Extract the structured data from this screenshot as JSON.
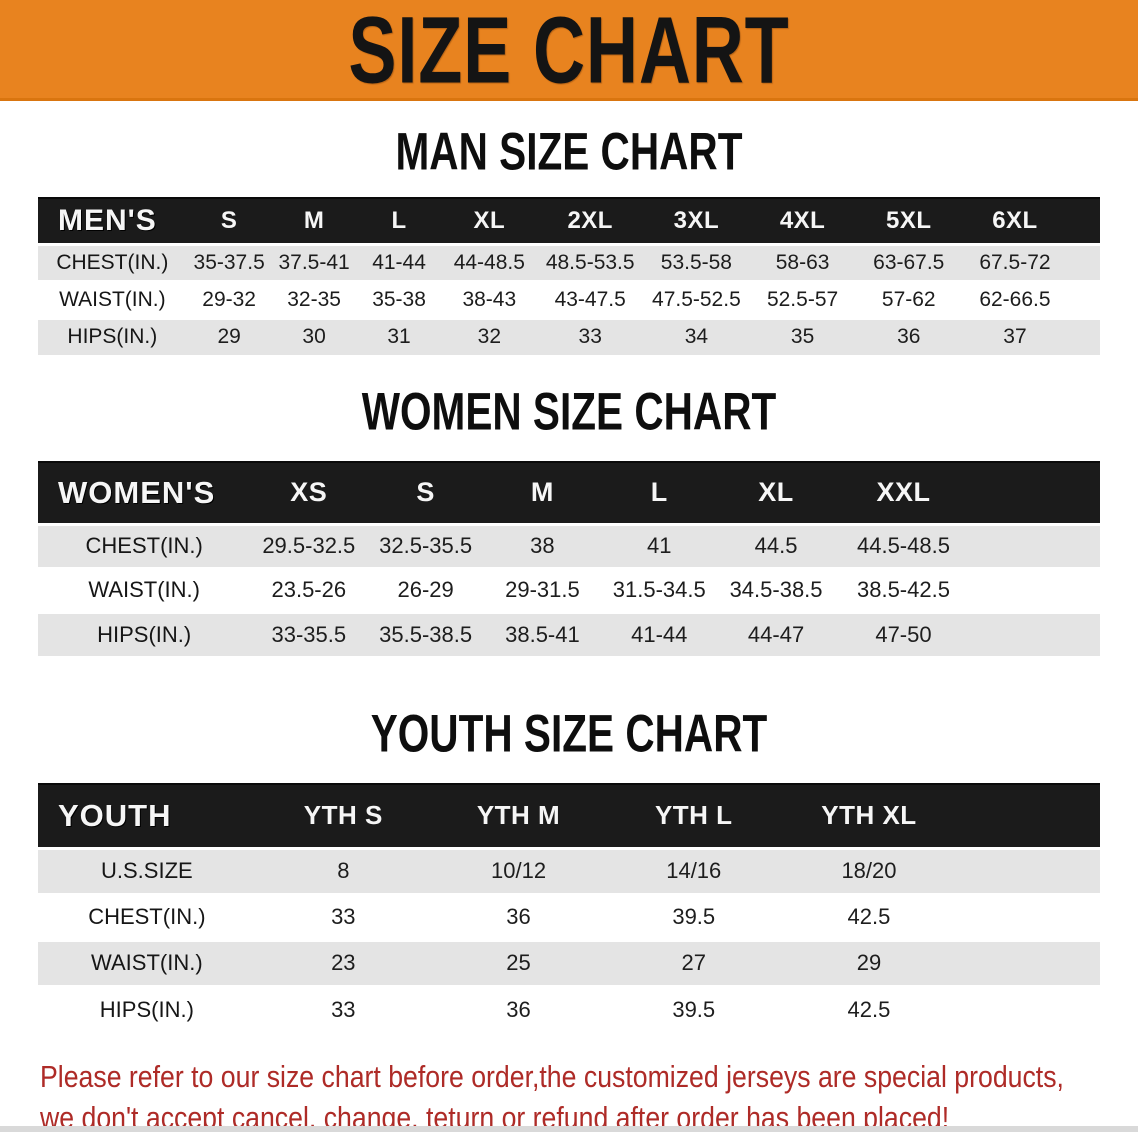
{
  "banner": {
    "title": "SIZE CHART",
    "bg_color": "#E8831F",
    "text_color": "#141414"
  },
  "sections": [
    {
      "id": "men",
      "heading": "MAN SIZE CHART",
      "corner_label": "MEN'S",
      "columns": [
        "S",
        "M",
        "L",
        "XL",
        "2XL",
        "3XL",
        "4XL",
        "5XL",
        "6XL"
      ],
      "rows": [
        {
          "label": "CHEST(IN.)",
          "values": [
            "35-37.5",
            "37.5-41",
            "41-44",
            "44-48.5",
            "48.5-53.5",
            "53.5-58",
            "58-63",
            "63-67.5",
            "67.5-72"
          ]
        },
        {
          "label": "WAIST(IN.)",
          "values": [
            "29-32",
            "32-35",
            "35-38",
            "38-43",
            "43-47.5",
            "47.5-52.5",
            "52.5-57",
            "57-62",
            "62-66.5"
          ]
        },
        {
          "label": "HIPS(IN.)",
          "values": [
            "29",
            "30",
            "31",
            "32",
            "33",
            "34",
            "35",
            "36",
            "37"
          ]
        }
      ]
    },
    {
      "id": "women",
      "heading": "WOMEN SIZE CHART",
      "corner_label": "WOMEN'S",
      "columns": [
        "XS",
        "S",
        "M",
        "L",
        "XL",
        "XXL"
      ],
      "rows": [
        {
          "label": "CHEST(IN.)",
          "values": [
            "29.5-32.5",
            "32.5-35.5",
            "38",
            "41",
            "44.5",
            "44.5-48.5"
          ]
        },
        {
          "label": "WAIST(IN.)",
          "values": [
            "23.5-26",
            "26-29",
            "29-31.5",
            "31.5-34.5",
            "34.5-38.5",
            "38.5-42.5"
          ]
        },
        {
          "label": "HIPS(IN.)",
          "values": [
            "33-35.5",
            "35.5-38.5",
            "38.5-41",
            "41-44",
            "44-47",
            "47-50"
          ]
        }
      ]
    },
    {
      "id": "youth",
      "heading": "YOUTH SIZE CHART",
      "corner_label": "YOUTH",
      "columns": [
        "YTH S",
        "YTH M",
        "YTH L",
        "YTH XL"
      ],
      "rows": [
        {
          "label": "U.S.SIZE",
          "values": [
            "8",
            "10/12",
            "14/16",
            "18/20"
          ]
        },
        {
          "label": "CHEST(IN.)",
          "values": [
            "33",
            "36",
            "39.5",
            "42.5"
          ]
        },
        {
          "label": "WAIST(IN.)",
          "values": [
            "23",
            "25",
            "27",
            "29"
          ]
        },
        {
          "label": "HIPS(IN.)",
          "values": [
            "33",
            "36",
            "39.5",
            "42.5"
          ]
        }
      ]
    }
  ],
  "footer": {
    "lines": [
      "Please refer to our size chart before order,the customized jerseys are special products,",
      "we don't accept cancel, change, teturn or refund after order has been placed!"
    ],
    "text_color": "#AE2B27"
  },
  "colors": {
    "header_bar": "#1B1B1B",
    "row_stripe": "#E4E4E4",
    "banner_orange": "#E8831F",
    "footer_red": "#AE2B27"
  }
}
